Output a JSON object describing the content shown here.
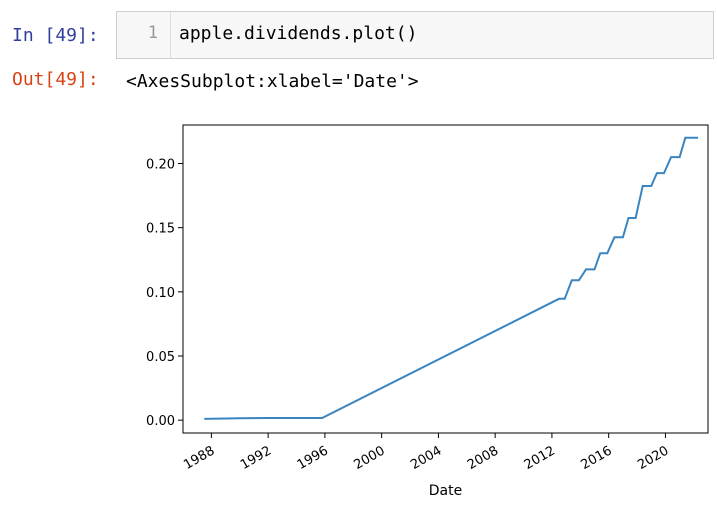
{
  "input_cell": {
    "prompt": "In [49]:",
    "line_number": "1",
    "code": "apple.dividends.plot()"
  },
  "output_cell": {
    "prompt": "Out[49]:",
    "text": "<AxesSubplot:xlabel='Date'>"
  },
  "chart_data": {
    "type": "line",
    "title": "",
    "xlabel": "Date",
    "ylabel": "",
    "xlim": [
      1986.0,
      2023.0
    ],
    "ylim": [
      -0.01,
      0.23
    ],
    "grid": false,
    "legend": "none",
    "x_ticks": [
      1988,
      1992,
      1996,
      2000,
      2004,
      2008,
      2012,
      2016,
      2020
    ],
    "x_tick_labels": [
      "1988",
      "1992",
      "1996",
      "2000",
      "2004",
      "2008",
      "2012",
      "2016",
      "2020"
    ],
    "y_ticks": [
      0.0,
      0.05,
      0.1,
      0.15,
      0.2
    ],
    "y_tick_labels": [
      "0.00",
      "0.05",
      "0.10",
      "0.15",
      "0.20"
    ],
    "line_color": "#3a85c0",
    "series": [
      {
        "x": [
          1987.5,
          1990.0,
          1992.0,
          1994.0,
          1995.8,
          2012.5,
          2012.9,
          2013.4,
          2013.9,
          2014.4,
          2015.0,
          2015.4,
          2015.9,
          2016.4,
          2017.0,
          2017.4,
          2017.9,
          2018.4,
          2019.0,
          2019.4,
          2019.9,
          2020.4,
          2021.0,
          2021.4,
          2021.9,
          2022.3
        ],
        "y": [
          0.001,
          0.0015,
          0.0017,
          0.0017,
          0.0017,
          0.0946,
          0.0946,
          0.109,
          0.109,
          0.1175,
          0.1175,
          0.13,
          0.13,
          0.1425,
          0.1425,
          0.1575,
          0.1575,
          0.1825,
          0.1825,
          0.1925,
          0.1925,
          0.205,
          0.205,
          0.22,
          0.22,
          0.22
        ]
      }
    ]
  }
}
